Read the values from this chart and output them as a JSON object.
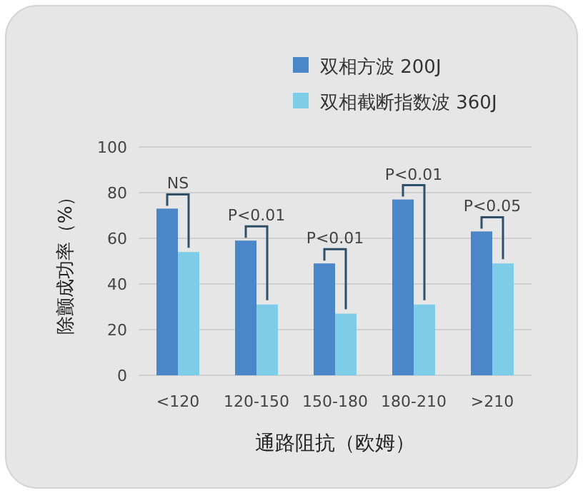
{
  "chart_data": {
    "type": "bar",
    "categories": [
      "<120",
      "120-150",
      "150-180",
      "180-210",
      ">210"
    ],
    "series": [
      {
        "name": "双相方波 200J",
        "color": "#4a86c8",
        "values": [
          73,
          59,
          49,
          77,
          63
        ]
      },
      {
        "name": "双相截断指数波 360J",
        "color": "#7ecde8",
        "values": [
          54,
          31,
          27,
          31,
          49
        ]
      }
    ],
    "ylim": [
      0,
      100
    ],
    "yticks": [
      0,
      20,
      40,
      60,
      80,
      100
    ],
    "grid": "y",
    "legend": "top right",
    "xlabel": "通路阻抗（欧姆）",
    "ylabel": "除颤成功率（%）",
    "annotations": [
      {
        "text": "NS",
        "x": "<120",
        "y": 73
      },
      {
        "text": "P<0.01",
        "x": "120-150",
        "y": 59
      },
      {
        "text": "P<0.01",
        "x": "150-180",
        "y": 49
      },
      {
        "text": "P<0.01",
        "x": "180-210",
        "y": 77
      },
      {
        "text": "P<0.05",
        "x": ">210",
        "y": 63
      }
    ]
  }
}
